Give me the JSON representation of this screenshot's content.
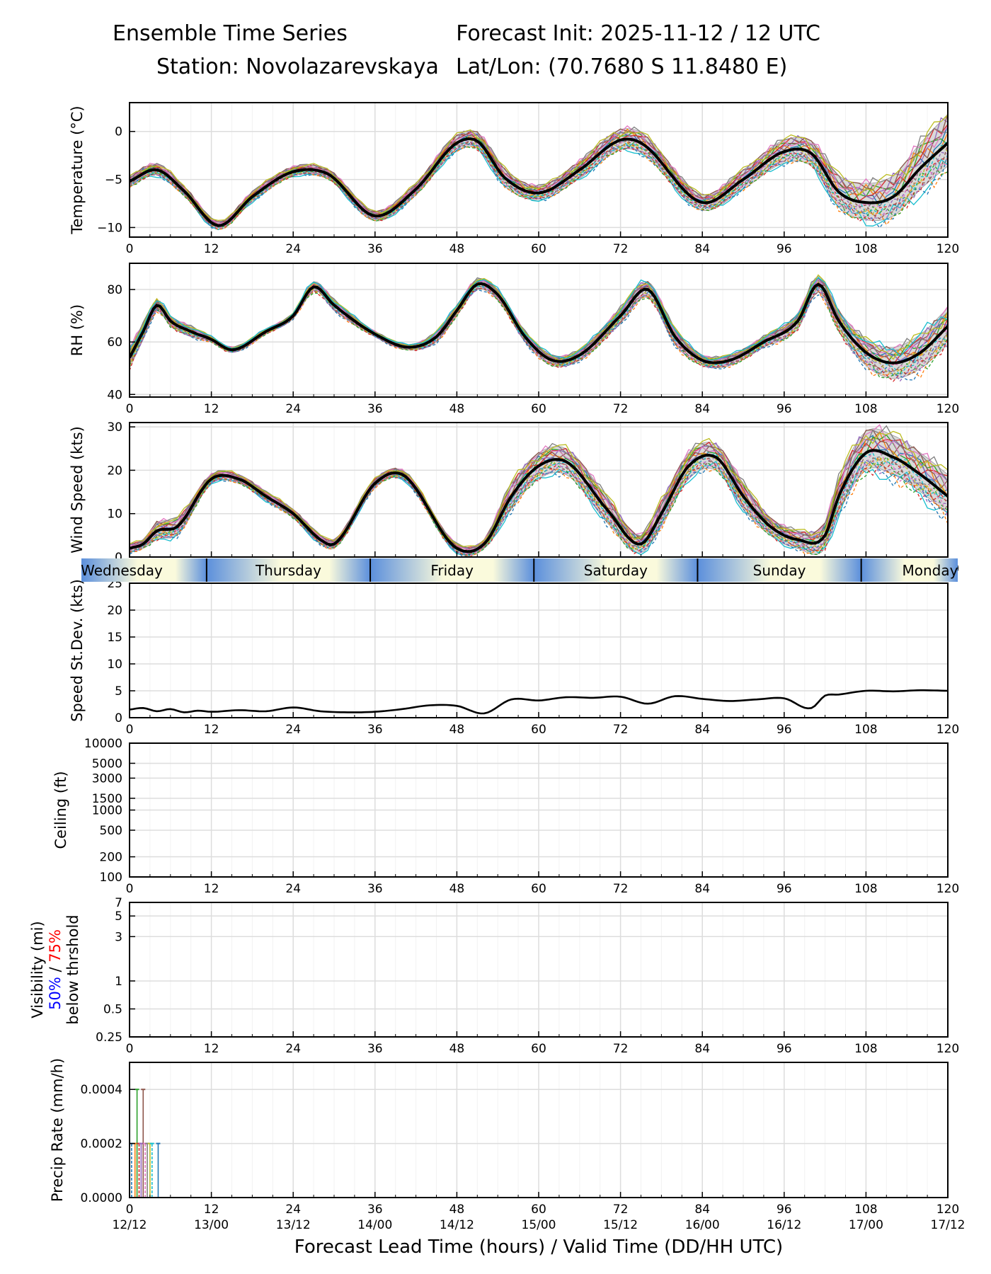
{
  "header": {
    "title": "Ensemble Time Series",
    "init": "Forecast Init: 2025-11-12 / 12 UTC",
    "station": "Station: Novolazarevskaya",
    "latlon": "Lat/Lon: (70.7680 S 11.8480 E)"
  },
  "colors": {
    "mean": "#000000",
    "spread": "#d9d9d9",
    "members": [
      "#1f77b4",
      "#ff7f0e",
      "#2ca02c",
      "#d62728",
      "#9467bd",
      "#8c564b",
      "#e377c2",
      "#7f7f7f",
      "#bcbd22",
      "#17becf"
    ],
    "vis50": "#0000ff",
    "vis75": "#ff0000",
    "day_fill": "#fafadc",
    "night_fill": "#5b8fdc"
  },
  "chart_data": [
    {
      "id": "temperature",
      "type": "line",
      "ylabel": "Temperature (°C)",
      "xlim": [
        0,
        120
      ],
      "ylim": [
        -11,
        3
      ],
      "yticks": [
        -10,
        -5,
        0
      ],
      "xticks": [
        0,
        12,
        24,
        36,
        48,
        60,
        72,
        84,
        96,
        108,
        120
      ],
      "mean": {
        "x": [
          0,
          4,
          8,
          13,
          18,
          24,
          29,
          36,
          42,
          48,
          51,
          55,
          60,
          66,
          72,
          75,
          84,
          90,
          96,
          100,
          104,
          108,
          112,
          116,
          120
        ],
        "y": [
          -5.2,
          -4.0,
          -6.2,
          -9.8,
          -6.8,
          -4.2,
          -4.4,
          -8.8,
          -6.0,
          -1.2,
          -1.0,
          -4.8,
          -6.4,
          -4.0,
          -0.9,
          -1.2,
          -7.4,
          -5.0,
          -2.1,
          -2.3,
          -6.3,
          -7.4,
          -6.8,
          -3.8,
          -1.2
        ]
      },
      "spread_lo": [
        -0.6,
        -0.5,
        -0.5,
        -0.4,
        -0.5,
        -0.4,
        -0.5,
        -0.5,
        -0.6,
        -0.8,
        -0.8,
        -0.9,
        -0.7,
        -0.9,
        -1.0,
        -1.0,
        -0.8,
        -1.0,
        -1.2,
        -1.3,
        -1.6,
        -1.8,
        -2.0,
        -2.2,
        -2.4
      ],
      "spread_hi": [
        0.6,
        0.6,
        0.5,
        0.4,
        0.5,
        0.5,
        0.5,
        0.5,
        0.6,
        0.8,
        0.9,
        0.9,
        0.7,
        0.9,
        1.1,
        1.1,
        0.8,
        1.0,
        1.2,
        1.3,
        1.7,
        2.0,
        2.2,
        2.6,
        3.0
      ]
    },
    {
      "id": "rh",
      "type": "line",
      "ylabel": "RH (%)",
      "xlim": [
        0,
        120
      ],
      "ylim": [
        39,
        90
      ],
      "yticks": [
        40,
        60,
        80
      ],
      "xticks": [
        0,
        12,
        24,
        36,
        48,
        60,
        72,
        84,
        96,
        108,
        120
      ],
      "mean": {
        "x": [
          0,
          2,
          4,
          6,
          9,
          12,
          15,
          20,
          24,
          27,
          30,
          36,
          41,
          45,
          48,
          51,
          54,
          58,
          62,
          66,
          72,
          76,
          80,
          84,
          88,
          93,
          98,
          101,
          104,
          108,
          112,
          116,
          120
        ],
        "y": [
          54,
          64,
          74,
          68,
          64,
          61,
          57,
          64,
          70,
          81,
          74,
          63,
          58,
          62,
          72,
          82,
          78,
          62,
          53,
          55,
          70,
          80,
          62,
          53,
          53,
          60,
          68,
          82,
          68,
          56,
          52,
          56,
          66
        ]
      },
      "spread_lo": [
        -4,
        -3,
        -2,
        -2,
        -2,
        -1,
        -1,
        -1,
        -1,
        -1,
        -2,
        -1,
        -1,
        -2,
        -2,
        -2,
        -2,
        -2,
        -2,
        -2,
        -3,
        -3,
        -3,
        -2,
        -2,
        -2,
        -3,
        -3,
        -4,
        -5,
        -6,
        -6,
        -7
      ],
      "spread_hi": [
        4,
        3,
        2,
        2,
        2,
        1,
        1,
        1,
        1,
        2,
        2,
        1,
        1,
        2,
        2,
        2,
        2,
        2,
        2,
        2,
        3,
        3,
        3,
        2,
        2,
        2,
        3,
        3,
        4,
        5,
        6,
        7,
        7
      ]
    },
    {
      "id": "wind_speed",
      "type": "line",
      "ylabel": "Wind Speed (kts)",
      "xlim": [
        0,
        120
      ],
      "ylim": [
        0,
        31
      ],
      "yticks": [
        0,
        10,
        20,
        30
      ],
      "xticks": [
        0,
        12,
        24,
        36,
        48,
        60,
        72,
        84,
        96,
        108,
        120
      ],
      "mean": {
        "x": [
          0,
          2,
          4,
          7,
          12,
          16,
          20,
          24,
          28,
          30,
          36,
          40,
          48,
          52,
          56,
          60,
          64,
          70,
          75,
          78,
          82,
          86,
          90,
          94,
          98,
          102,
          104,
          108,
          112,
          116,
          120
        ],
        "y": [
          2,
          3,
          6,
          7,
          18,
          18,
          14,
          10,
          4,
          3,
          17,
          19,
          2,
          3,
          14,
          21,
          22,
          11,
          3,
          10,
          21,
          23,
          14,
          7,
          4,
          5,
          14,
          24,
          23,
          19,
          14
        ]
      },
      "spread_lo": [
        -1,
        -1,
        -2,
        -2,
        -1,
        -1,
        -1,
        -1,
        -1,
        -1,
        -1,
        -1,
        -1,
        -1,
        -3,
        -3,
        -3,
        -3,
        -2,
        -3,
        -3,
        -3,
        -3,
        -2,
        -2,
        -3,
        -4,
        -4,
        -4,
        -4,
        -4
      ],
      "spread_hi": [
        1,
        1,
        2,
        2,
        1,
        1,
        1,
        1,
        1,
        1,
        1,
        1,
        1,
        1,
        3,
        3,
        3,
        3,
        2,
        3,
        3,
        3,
        3,
        2,
        2,
        3,
        4,
        5,
        5,
        5,
        5
      ]
    },
    {
      "id": "speed_stdev",
      "type": "line",
      "ylabel": "Speed St.Dev. (kts)",
      "xlim": [
        0,
        120
      ],
      "ylim": [
        0,
        25
      ],
      "yticks": [
        0,
        5,
        10,
        15,
        20,
        25
      ],
      "xticks": [
        0,
        12,
        24,
        36,
        48,
        60,
        72,
        84,
        96,
        108,
        120
      ],
      "mean": {
        "x": [
          0,
          2,
          4,
          6,
          8,
          10,
          12,
          16,
          20,
          24,
          28,
          32,
          36,
          40,
          44,
          48,
          52,
          56,
          60,
          64,
          68,
          72,
          76,
          80,
          84,
          88,
          92,
          96,
          100,
          102,
          104,
          108,
          112,
          116,
          120
        ],
        "y": [
          1.5,
          1.8,
          1.2,
          1.6,
          1.0,
          1.3,
          1.1,
          1.4,
          1.2,
          1.9,
          1.2,
          1.0,
          1.1,
          1.6,
          2.3,
          2.2,
          0.8,
          3.4,
          3.2,
          3.8,
          3.7,
          3.9,
          2.6,
          4.0,
          3.5,
          3.1,
          3.4,
          3.6,
          1.8,
          4.1,
          4.3,
          5.0,
          4.9,
          5.1,
          5.0
        ]
      }
    },
    {
      "id": "ceiling",
      "type": "line",
      "ylabel": "Ceiling (ft)",
      "yscale": "log",
      "xlim": [
        0,
        120
      ],
      "ylim": [
        100,
        10000
      ],
      "yticks": [
        100,
        200,
        500,
        1000,
        1500,
        3000,
        5000,
        10000
      ],
      "xticks": [
        0,
        12,
        24,
        36,
        48,
        60,
        72,
        84,
        96,
        108,
        120
      ],
      "series": []
    },
    {
      "id": "visibility",
      "type": "line",
      "ylabel": "Visibility (mi)",
      "ylabel_pct50": "50%",
      "ylabel_slash": " / ",
      "ylabel_pct75": "75%",
      "ylabel_sub": "below thrshold",
      "yscale": "log",
      "xlim": [
        0,
        120
      ],
      "ylim": [
        0.25,
        7
      ],
      "yticks": [
        0.25,
        0.5,
        1,
        3,
        5,
        7
      ],
      "xticks": [
        0,
        12,
        24,
        36,
        48,
        60,
        72,
        84,
        96,
        108,
        120
      ],
      "series": []
    },
    {
      "id": "precip_rate",
      "type": "bar",
      "ylabel": "Precip Rate (mm/h)",
      "xlim": [
        0,
        120
      ],
      "ylim": [
        0,
        0.0005
      ],
      "yticks": [
        "0.0000",
        "0.0002",
        "0.0004"
      ],
      "xticks": [
        0,
        12,
        24,
        36,
        48,
        60,
        72,
        84,
        96,
        108,
        120
      ],
      "valid_times": [
        "12/12",
        "13/00",
        "13/12",
        "14/00",
        "14/12",
        "15/00",
        "15/12",
        "16/00",
        "16/12",
        "17/00",
        "17/12"
      ],
      "xlabel": "Forecast Lead Time (hours) / Valid Time (DD/HH UTC)",
      "bars": [
        {
          "x": 0.3,
          "value": 0.0002
        },
        {
          "x": 0.8,
          "value": 0.0002
        },
        {
          "x": 1.1,
          "value": 0.0004
        },
        {
          "x": 1.4,
          "value": 0.0002
        },
        {
          "x": 1.7,
          "value": 0.0002
        },
        {
          "x": 2.0,
          "value": 0.0004
        },
        {
          "x": 2.3,
          "value": 0.0002
        },
        {
          "x": 2.6,
          "value": 0.0002
        },
        {
          "x": 3.0,
          "value": 0.0002
        },
        {
          "x": 3.3,
          "value": 0.0002
        },
        {
          "x": 4.2,
          "value": 0.0002
        }
      ]
    }
  ],
  "day_band": {
    "labels": [
      "Wednesday",
      "Thursday",
      "Friday",
      "Saturday",
      "Sunday",
      "Monday"
    ],
    "boundaries_hours": [
      11.3,
      35.3,
      59.3,
      83.3,
      107.3
    ]
  }
}
